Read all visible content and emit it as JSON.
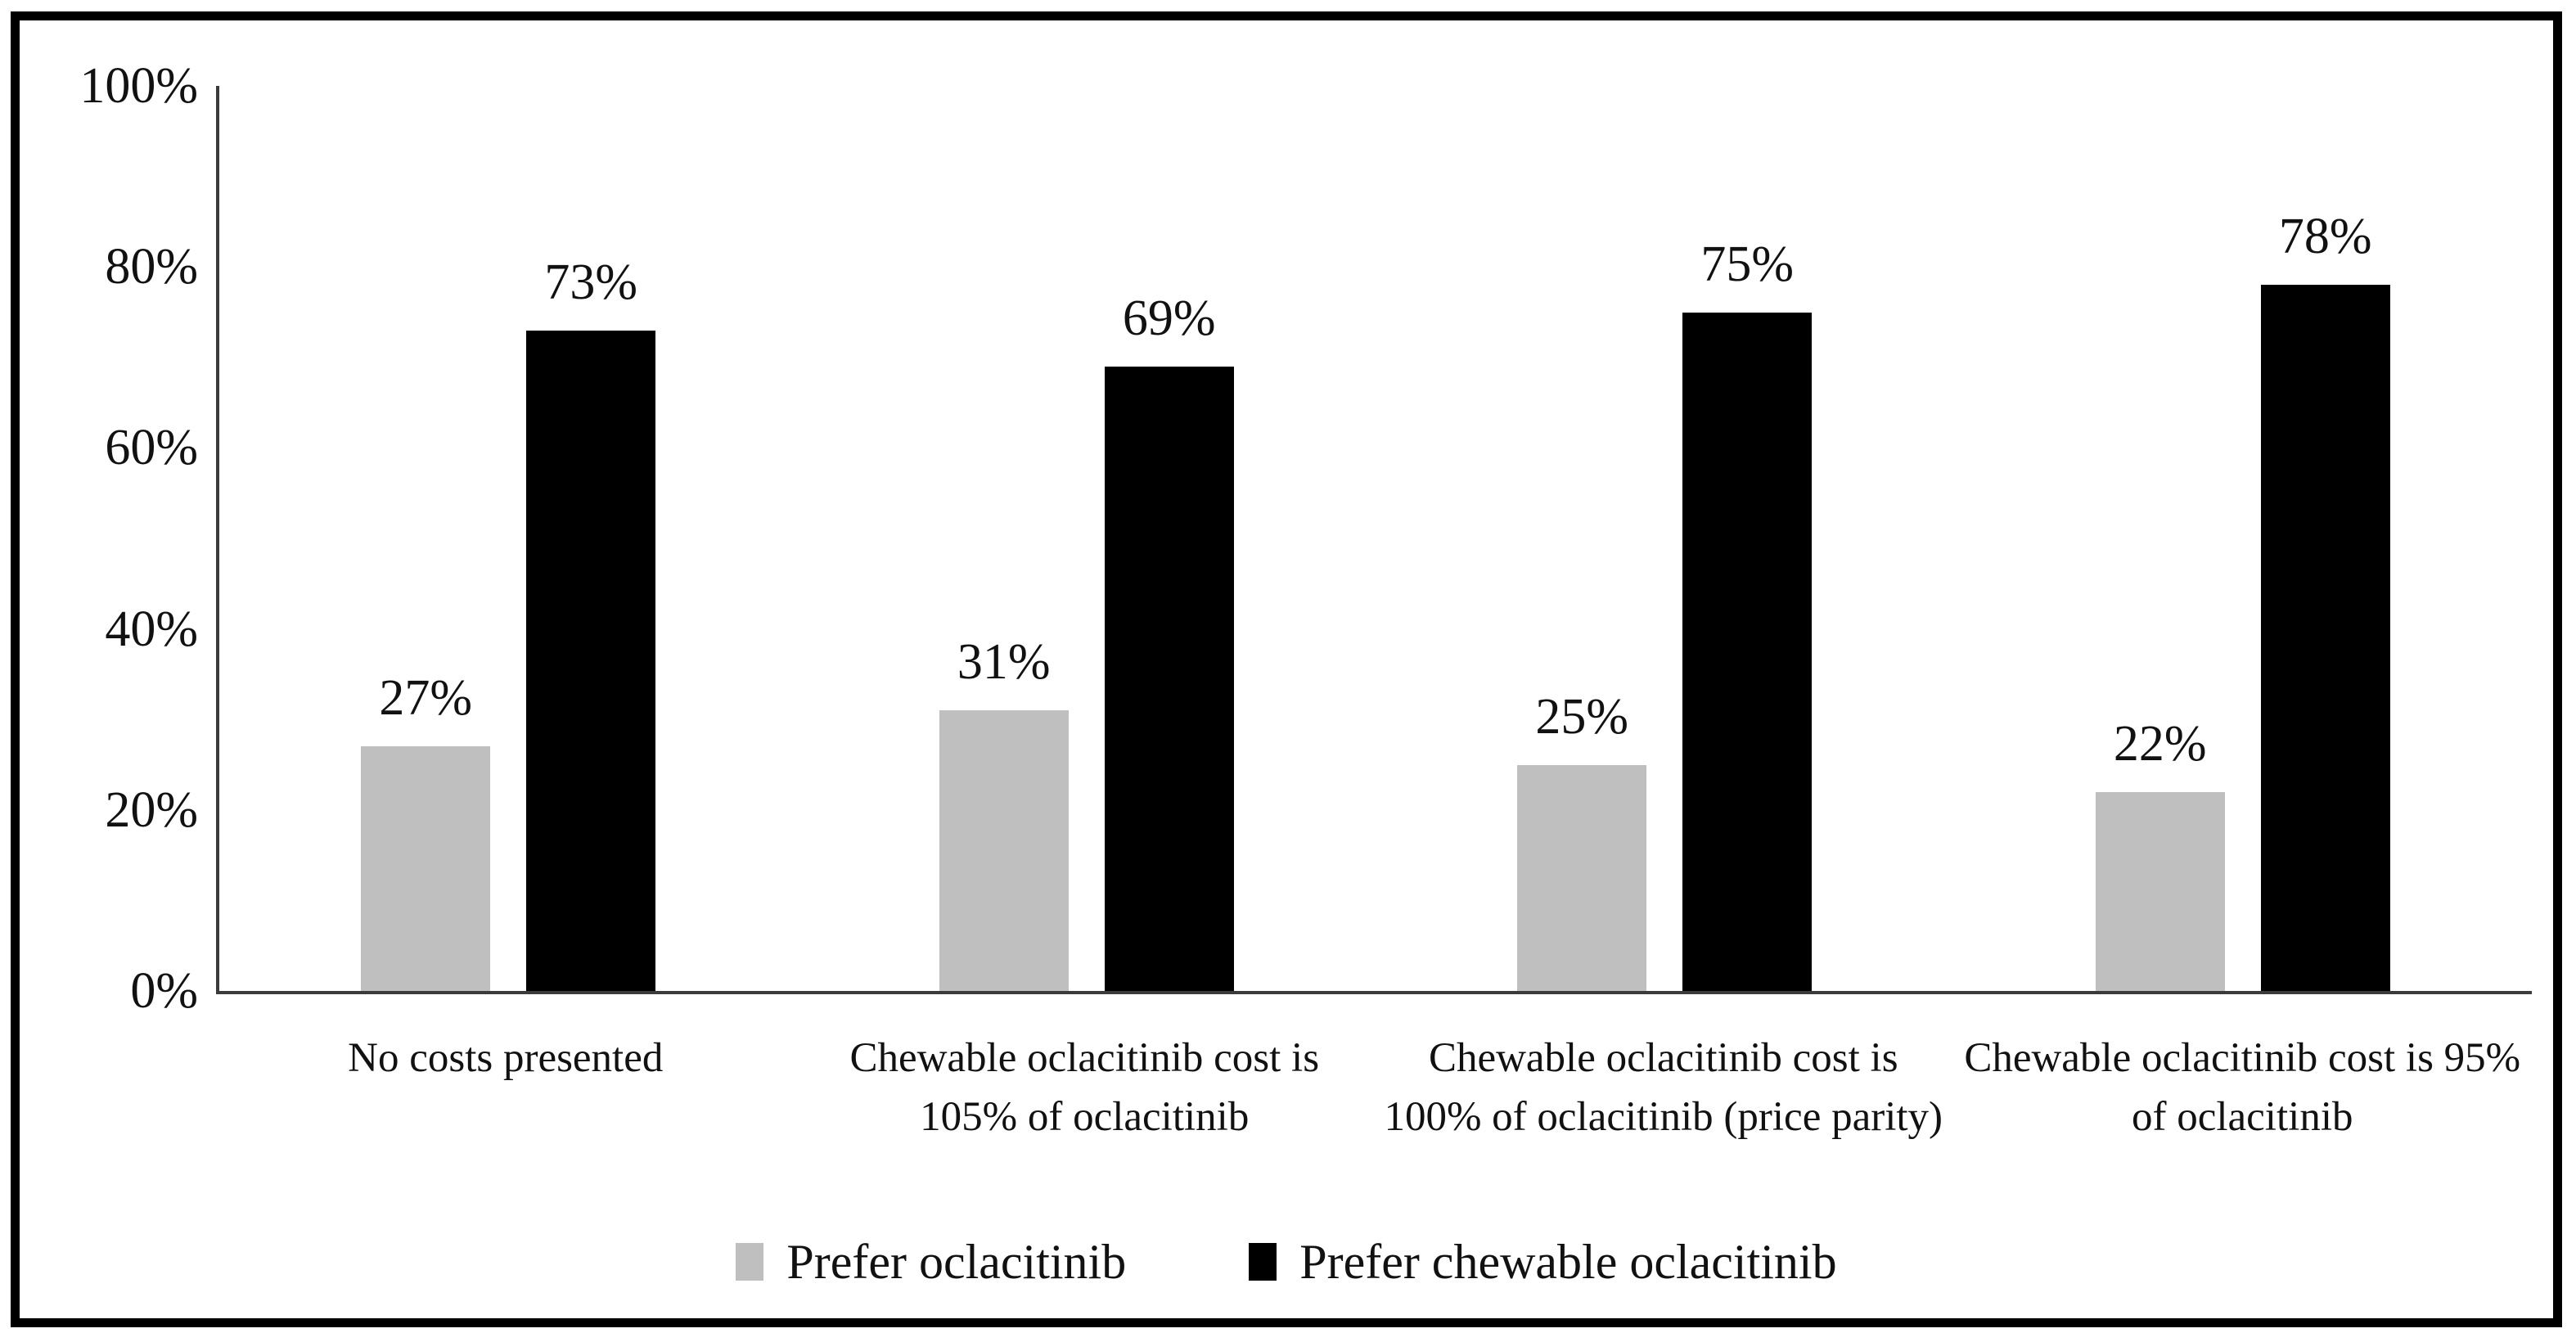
{
  "figure": {
    "frame_color": "#000000",
    "background": "#ffffff",
    "axis_color": "#3b3b3b"
  },
  "chart_data": {
    "type": "bar",
    "title": "",
    "xlabel": "",
    "ylabel": "",
    "categories": [
      "No costs presented",
      "Chewable oclacitinib cost is 105% of oclacitinib",
      "Chewable oclacitinib cost is 100% of oclacitinib (price parity)",
      "Chewable oclacitinib cost is 95% of oclacitinib"
    ],
    "series": [
      {
        "name": "Prefer oclacitinib",
        "color": "#bfbfbf",
        "values": [
          27,
          31,
          25,
          22
        ],
        "value_labels": [
          "27%",
          "31%",
          "25%",
          "22%"
        ]
      },
      {
        "name": "Prefer chewable oclacitinib",
        "color": "#000000",
        "values": [
          73,
          69,
          75,
          78
        ],
        "value_labels": [
          "73%",
          "69%",
          "75%",
          "78%"
        ]
      }
    ],
    "ylim": [
      0,
      100
    ],
    "ytick_step": 20,
    "ytick_labels": [
      "0%",
      "20%",
      "40%",
      "60%",
      "80%",
      "100%"
    ],
    "grid": false,
    "legend_position": "bottom"
  }
}
